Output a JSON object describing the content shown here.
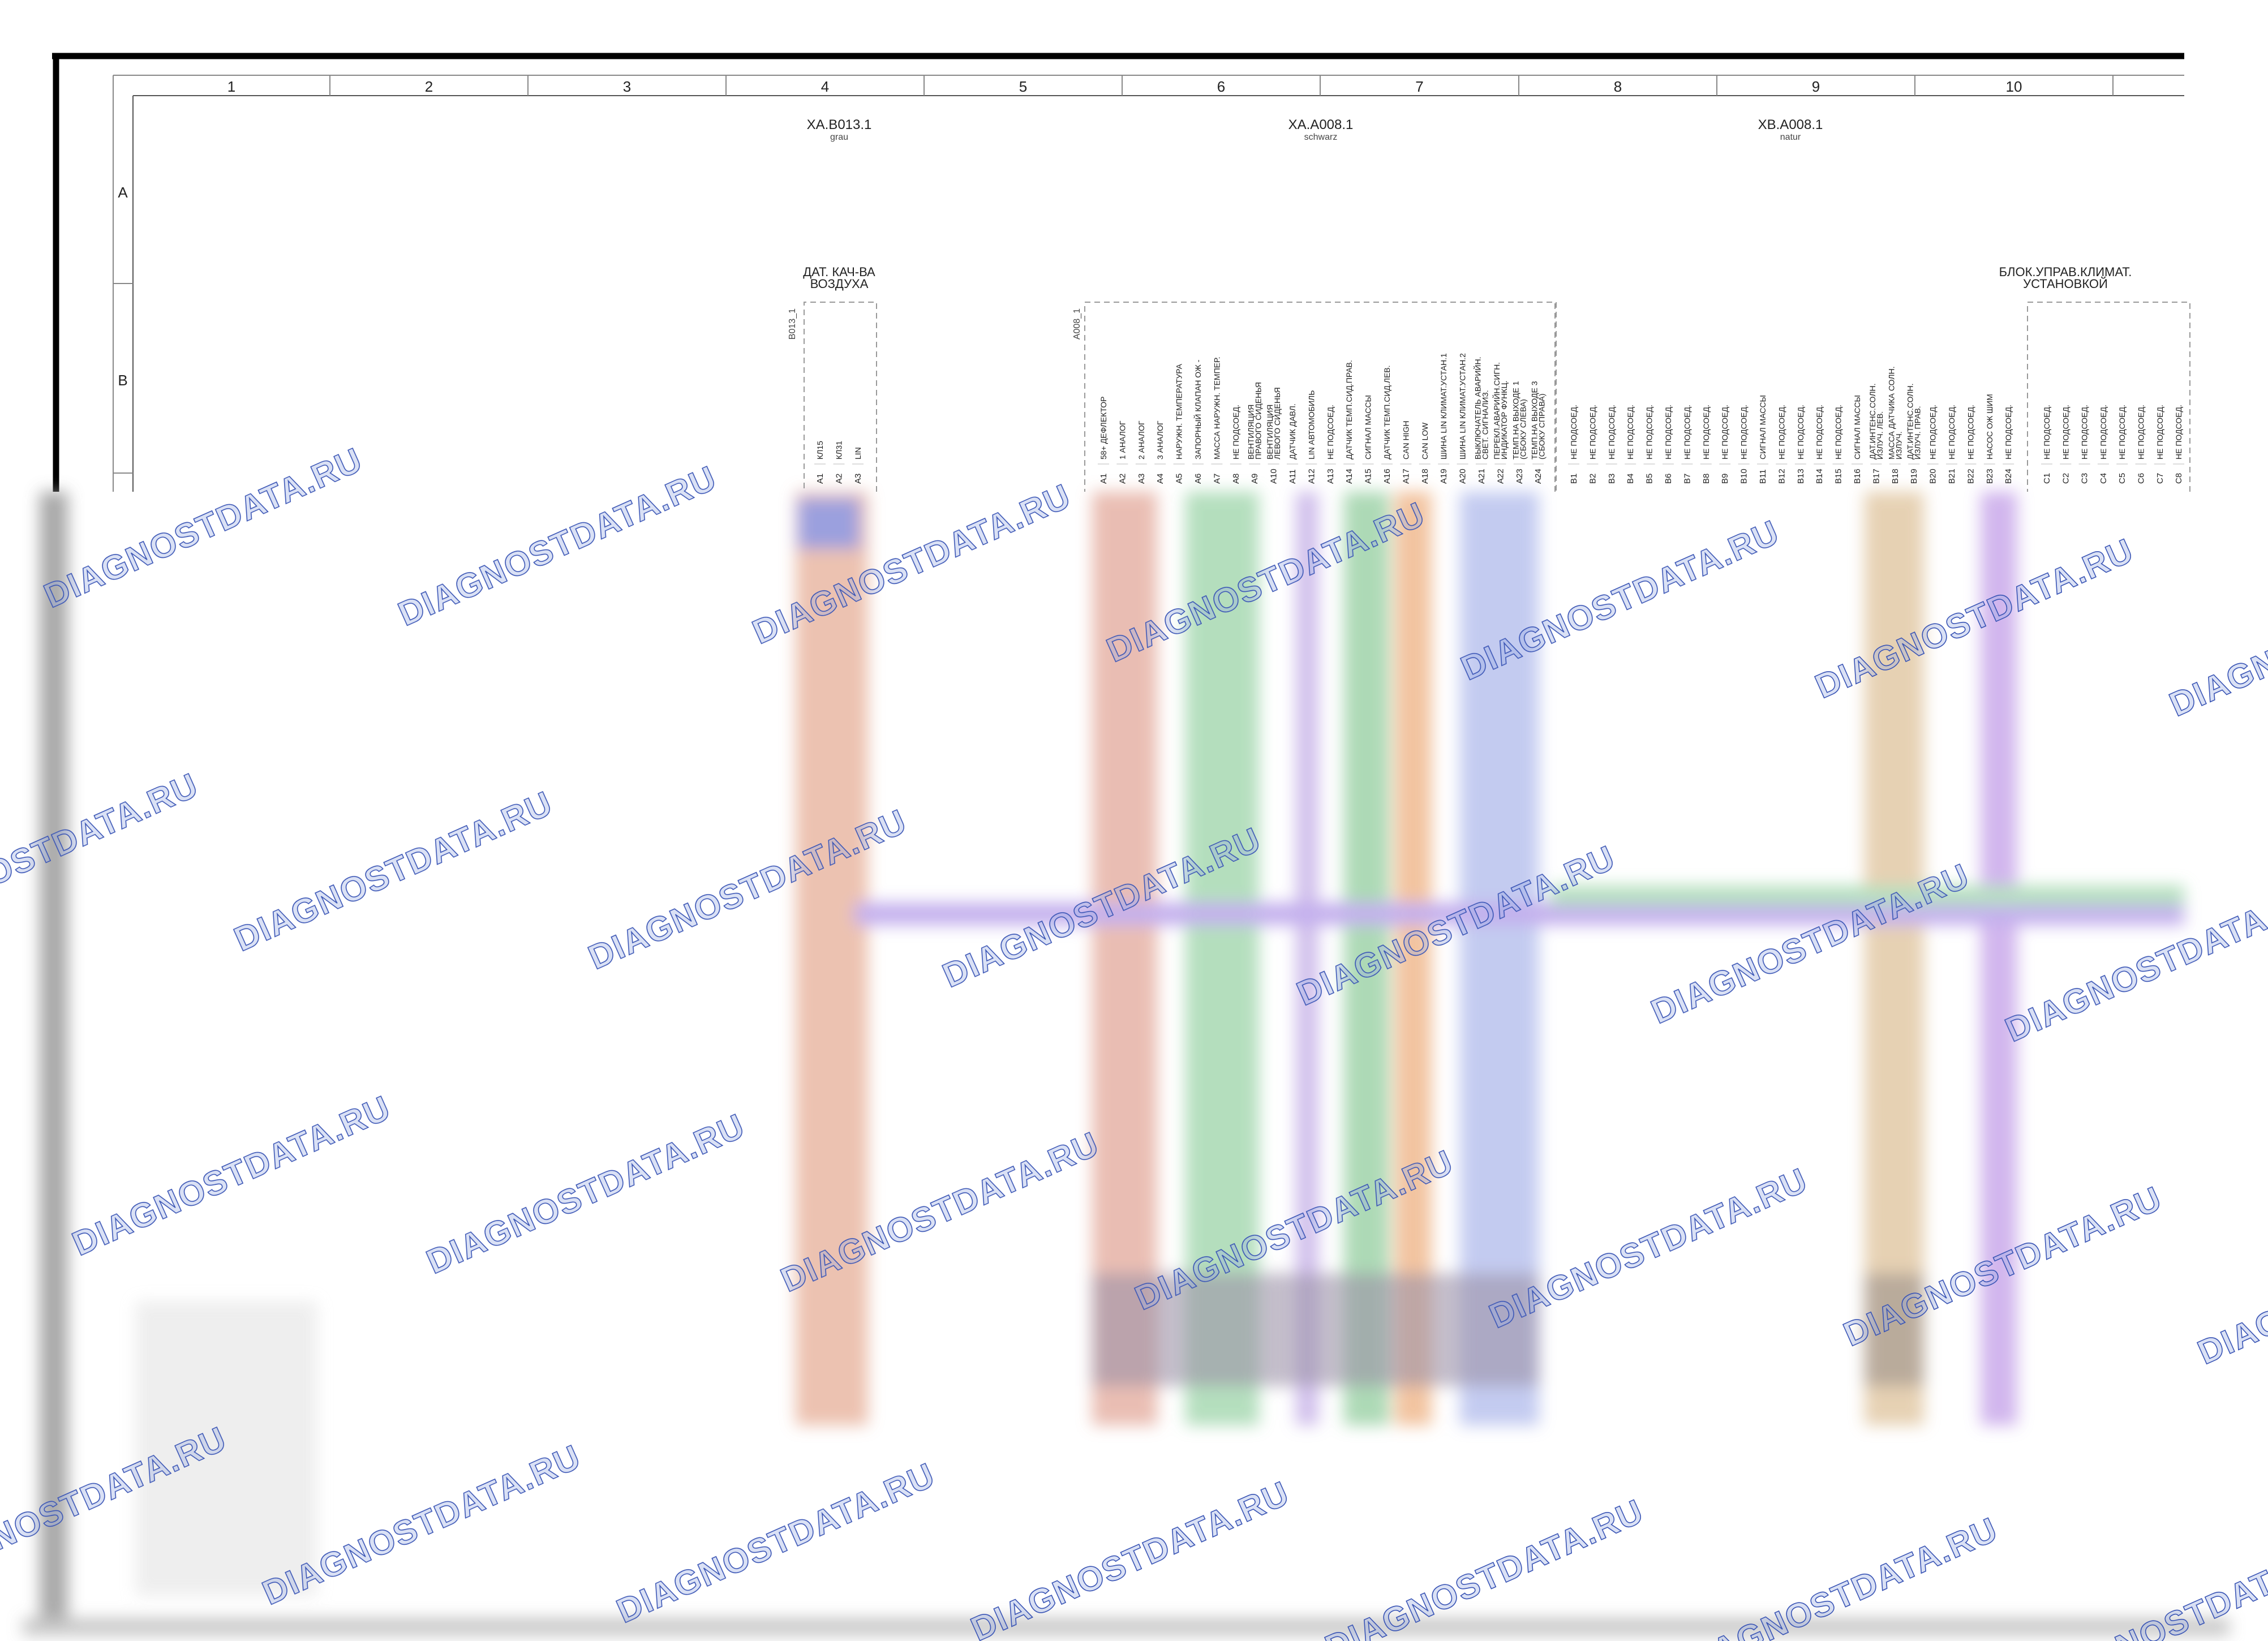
{
  "grid": {
    "columns": [
      "1",
      "2",
      "3",
      "4",
      "5",
      "6",
      "7",
      "8",
      "9",
      "10"
    ],
    "rows": [
      "A",
      "B"
    ]
  },
  "connectors": [
    {
      "name": "XA.B013.1",
      "color": "grau"
    },
    {
      "name": "XA.A008.1",
      "color": "schwarz"
    },
    {
      "name": "XB.A008.1",
      "color": "natur"
    }
  ],
  "components": [
    {
      "title": [
        "ДАТ. КАЧ-ВА",
        "ВОЗДУХА"
      ],
      "ref": "B013_1",
      "pins": [
        {
          "pin": "A1",
          "label": "КЛ15"
        },
        {
          "pin": "A2",
          "label": "КЛ31"
        },
        {
          "pin": "A3",
          "label": "LIN"
        }
      ]
    },
    {
      "ref": "A008_1",
      "pins": [
        {
          "pin": "A1",
          "label": "58+ ДЕФЛЕКТОР"
        },
        {
          "pin": "A2",
          "label": "1 АНАЛОГ"
        },
        {
          "pin": "A3",
          "label": "2 АНАЛОГ"
        },
        {
          "pin": "A4",
          "label": "3 АНАЛОГ"
        },
        {
          "pin": "A5",
          "label": "НАРУЖН. ТЕМПЕРАТУРА"
        },
        {
          "pin": "A6",
          "label": "ЗАПОРНЫЙ КЛАПАН ОЖ -"
        },
        {
          "pin": "A7",
          "label": "МАССА НАРУЖН. ТЕМПЕР."
        },
        {
          "pin": "A8",
          "label": "НЕ ПОДСОЕД."
        },
        {
          "pin": "A9",
          "label": [
            "ВЕНТИЛЯЦИЯ",
            "ПРАВОГО СИДЕНЬЯ"
          ]
        },
        {
          "pin": "A10",
          "label": [
            "ВЕНТИЛЯЦИЯ",
            "ЛЕВОГО СИДЕНЬЯ"
          ]
        },
        {
          "pin": "A11",
          "label": "ДАТЧИК ДАВЛ."
        },
        {
          "pin": "A12",
          "label": "LIN АВТОМОБИЛЬ"
        },
        {
          "pin": "A13",
          "label": "НЕ ПОДСОЕД."
        },
        {
          "pin": "A14",
          "label": "ДАТЧИК ТЕМП.СИД.ПРАВ."
        },
        {
          "pin": "A15",
          "label": "СИГНАЛ МАССЫ"
        },
        {
          "pin": "A16",
          "label": "ДАТЧИК ТЕМП.СИД.ЛЕВ."
        },
        {
          "pin": "A17",
          "label": "CAN HIGH"
        },
        {
          "pin": "A18",
          "label": "CAN LOW"
        },
        {
          "pin": "A19",
          "label": "ШИНА LIN КЛИМАТ.УСТАН.1"
        },
        {
          "pin": "A20",
          "label": "ШИНА LIN КЛИМАТ.УСТАН.2"
        },
        {
          "pin": "A21",
          "label": [
            "ВЫКЛЮЧАТЕЛЬ АВАРИЙН.",
            "СВЕТ. СИГНАЛИЗ."
          ]
        },
        {
          "pin": "A22",
          "label": [
            "ПЕРЕКЛ.АВАРИЙН.СИГН.",
            "ИНДИКАТОР ФУНКЦ."
          ]
        },
        {
          "pin": "A23",
          "label": [
            "ТЕМП.НА ВЫХОДЕ 1",
            "(СБОКУ СЛЕВА)"
          ]
        },
        {
          "pin": "A24",
          "label": [
            "ТЕМП.НА ВЫХОДЕ 3",
            "(СБОКУ СПРАВА)"
          ]
        },
        {
          "pin": "B1",
          "label": "НЕ ПОДСОЕД."
        },
        {
          "pin": "B2",
          "label": "НЕ ПОДСОЕД."
        },
        {
          "pin": "B3",
          "label": "НЕ ПОДСОЕД."
        },
        {
          "pin": "B4",
          "label": "НЕ ПОДСОЕД."
        },
        {
          "pin": "B5",
          "label": "НЕ ПОДСОЕД."
        },
        {
          "pin": "B6",
          "label": "НЕ ПОДСОЕД."
        },
        {
          "pin": "B7",
          "label": "НЕ ПОДСОЕД."
        },
        {
          "pin": "B8",
          "label": "НЕ ПОДСОЕД."
        },
        {
          "pin": "B9",
          "label": "НЕ ПОДСОЕД."
        },
        {
          "pin": "B10",
          "label": "НЕ ПОДСОЕД."
        },
        {
          "pin": "B11",
          "label": "СИГНАЛ МАССЫ"
        },
        {
          "pin": "B12",
          "label": "НЕ ПОДСОЕД."
        },
        {
          "pin": "B13",
          "label": "НЕ ПОДСОЕД."
        },
        {
          "pin": "B14",
          "label": "НЕ ПОДСОЕД."
        },
        {
          "pin": "B15",
          "label": "НЕ ПОДСОЕД."
        },
        {
          "pin": "B16",
          "label": "СИГНАЛ МАССЫ"
        },
        {
          "pin": "B17",
          "label": [
            "ДАТ.ИНТЕНС.СОЛН.",
            "ИЗЛУЧ. ЛЕВ."
          ]
        },
        {
          "pin": "B18",
          "label": [
            "МАССА ДАТЧИКА СОЛН.",
            "ИЗЛУЧ."
          ]
        },
        {
          "pin": "B19",
          "label": [
            "ДАТ.ИНТЕНС.СОЛН.",
            "ИЗЛУЧ. ПРАВ."
          ]
        },
        {
          "pin": "B20",
          "label": "НЕ ПОДСОЕД."
        },
        {
          "pin": "B21",
          "label": "НЕ ПОДСОЕД."
        },
        {
          "pin": "B22",
          "label": "НЕ ПОДСОЕД."
        },
        {
          "pin": "B23",
          "label": "НАСОС ОЖ ШИМ"
        },
        {
          "pin": "B24",
          "label": "НЕ ПОДСОЕД."
        }
      ]
    },
    {
      "title": [
        "БЛОК.УПРАВ.КЛИМАТ.",
        "УСТАНОВКОЙ"
      ],
      "pins": [
        {
          "pin": "C1",
          "label": "НЕ ПОДСОЕД."
        },
        {
          "pin": "C2",
          "label": "НЕ ПОДСОЕД."
        },
        {
          "pin": "C3",
          "label": "НЕ ПОДСОЕД."
        },
        {
          "pin": "C4",
          "label": "НЕ ПОДСОЕД."
        },
        {
          "pin": "C5",
          "label": "НЕ ПОДСОЕД."
        },
        {
          "pin": "C6",
          "label": "НЕ ПОДСОЕД."
        },
        {
          "pin": "C7",
          "label": "НЕ ПОДСОЕД."
        },
        {
          "pin": "C8",
          "label": "НЕ ПОДСОЕД."
        }
      ]
    }
  ],
  "watermark": "DIAGNOSTDATA.RU"
}
